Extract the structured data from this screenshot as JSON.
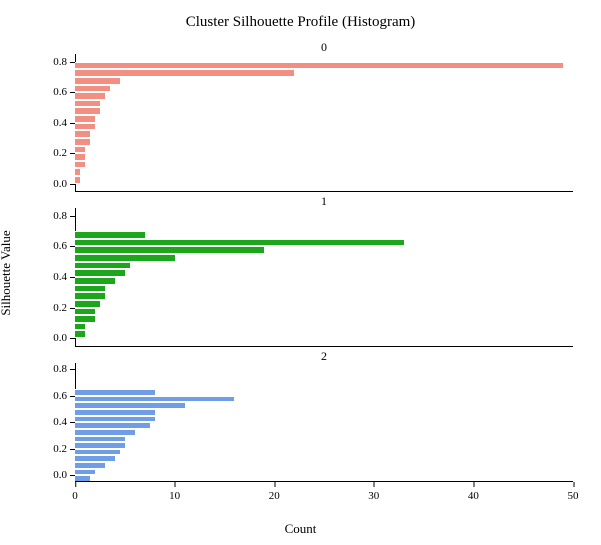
{
  "chart": {
    "type": "histogram",
    "title": "Cluster Silhouette Profile (Histogram)",
    "title_fontsize": 15,
    "xlabel": "Count",
    "ylabel": "Silhouette Value",
    "label_fontsize": 13,
    "tick_fontsize": 11,
    "background_color": "#ffffff",
    "text_color": "#000000",
    "xlim": [
      0,
      50
    ],
    "xtick_step": 10,
    "xticks": [
      0,
      10,
      20,
      30,
      40,
      50
    ],
    "ylim": [
      -0.05,
      0.85
    ],
    "yticks": [
      0.0,
      0.2,
      0.4,
      0.6,
      0.8
    ],
    "bar_border_color": "#ffffff",
    "bar_border_width": 1,
    "panels": [
      {
        "title": "0",
        "bar_color": "#f28e82",
        "bin_width": 0.05,
        "bins": [
          {
            "y": 0.0,
            "count": 0.5
          },
          {
            "y": 0.05,
            "count": 0.5
          },
          {
            "y": 0.1,
            "count": 1
          },
          {
            "y": 0.15,
            "count": 1
          },
          {
            "y": 0.2,
            "count": 1
          },
          {
            "y": 0.25,
            "count": 1.5
          },
          {
            "y": 0.3,
            "count": 1.5
          },
          {
            "y": 0.35,
            "count": 2
          },
          {
            "y": 0.4,
            "count": 2
          },
          {
            "y": 0.45,
            "count": 2.5
          },
          {
            "y": 0.5,
            "count": 2.5
          },
          {
            "y": 0.55,
            "count": 3
          },
          {
            "y": 0.6,
            "count": 3.5
          },
          {
            "y": 0.65,
            "count": 4.5
          },
          {
            "y": 0.7,
            "count": 22
          },
          {
            "y": 0.75,
            "count": 49
          }
        ]
      },
      {
        "title": "1",
        "bar_color": "#1ca61c",
        "bin_width": 0.05,
        "bins": [
          {
            "y": 0.0,
            "count": 1
          },
          {
            "y": 0.05,
            "count": 1
          },
          {
            "y": 0.1,
            "count": 2
          },
          {
            "y": 0.15,
            "count": 2
          },
          {
            "y": 0.2,
            "count": 2.5
          },
          {
            "y": 0.25,
            "count": 3
          },
          {
            "y": 0.3,
            "count": 3
          },
          {
            "y": 0.35,
            "count": 4
          },
          {
            "y": 0.4,
            "count": 5
          },
          {
            "y": 0.45,
            "count": 5.5
          },
          {
            "y": 0.5,
            "count": 10
          },
          {
            "y": 0.55,
            "count": 19
          },
          {
            "y": 0.6,
            "count": 33
          },
          {
            "y": 0.65,
            "count": 7
          }
        ]
      },
      {
        "title": "2",
        "bar_color": "#6f9ee6",
        "bin_width": 0.05,
        "bins": [
          {
            "y": -0.05,
            "count": 1.5
          },
          {
            "y": 0.0,
            "count": 2
          },
          {
            "y": 0.05,
            "count": 3
          },
          {
            "y": 0.1,
            "count": 4
          },
          {
            "y": 0.15,
            "count": 4.5
          },
          {
            "y": 0.2,
            "count": 5
          },
          {
            "y": 0.25,
            "count": 5
          },
          {
            "y": 0.3,
            "count": 6
          },
          {
            "y": 0.35,
            "count": 7.5
          },
          {
            "y": 0.4,
            "count": 8
          },
          {
            "y": 0.45,
            "count": 8
          },
          {
            "y": 0.5,
            "count": 11
          },
          {
            "y": 0.55,
            "count": 16
          },
          {
            "y": 0.6,
            "count": 8
          }
        ]
      }
    ]
  }
}
